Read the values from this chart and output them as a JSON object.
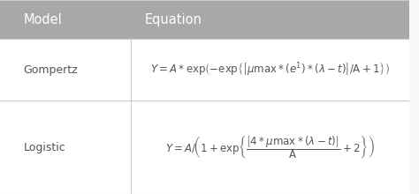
{
  "header_bg": "#a8a8a8",
  "header_text_color": "#ffffff",
  "row_bg": "#ffffff",
  "border_color": "#cccccc",
  "text_color": "#555555",
  "header_col1": "Model",
  "header_col2": "Equation",
  "row1_model": "Gompertz",
  "row2_model": "Logistic",
  "fig_bg": "#f9f9f9",
  "col_split": 0.32
}
